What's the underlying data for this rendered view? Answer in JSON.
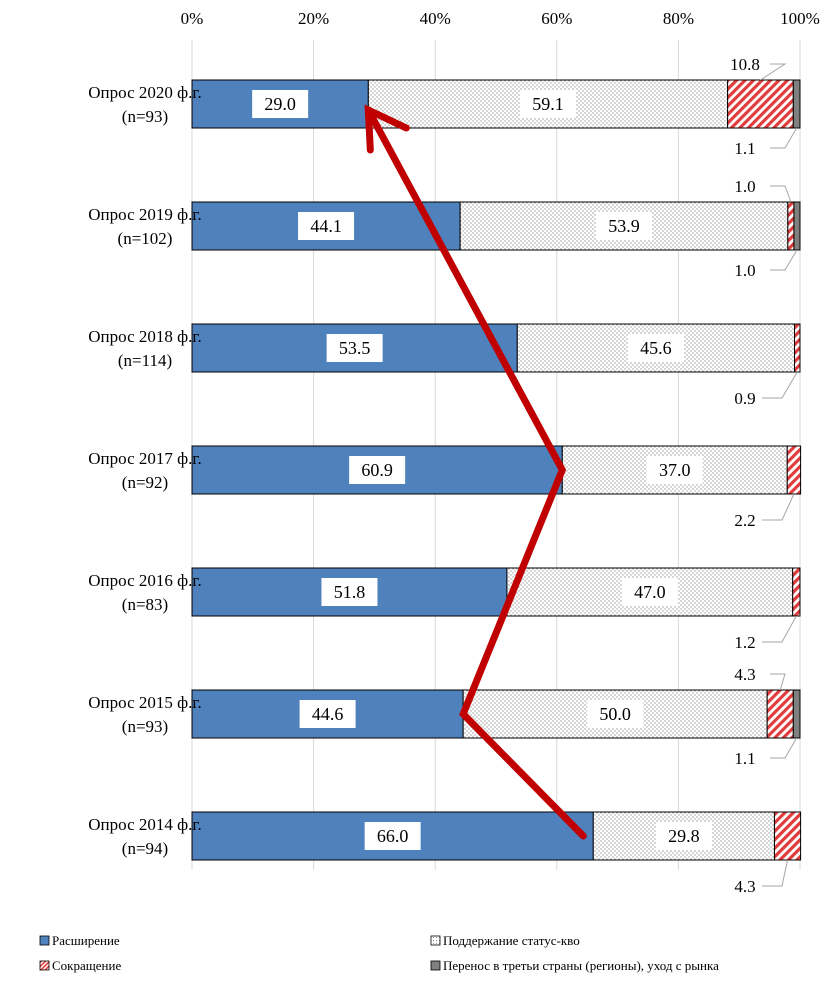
{
  "chart_data": {
    "type": "bar",
    "orientation": "horizontal",
    "stacked": "percent",
    "xlim": [
      0,
      100
    ],
    "x_ticks": [
      "0%",
      "20%",
      "40%",
      "60%",
      "80%",
      "100%"
    ],
    "grid": true,
    "legend_position": "bottom",
    "categories": [
      {
        "line1": "Опрос 2020 ф.г.",
        "line2": "(n=93)"
      },
      {
        "line1": "Опрос 2019 ф.г.",
        "line2": "(n=102)"
      },
      {
        "line1": "Опрос 2018 ф.г.",
        "line2": "(n=114)"
      },
      {
        "line1": "Опрос 2017 ф.г.",
        "line2": "(n=92)"
      },
      {
        "line1": "Опрос 2016 ф.г.",
        "line2": "(n=83)"
      },
      {
        "line1": "Опрос 2015  ф.г.",
        "line2": "(n=93)"
      },
      {
        "line1": "Опрос 2014  ф.г.",
        "line2": "(n=94)"
      }
    ],
    "series": [
      {
        "name": "Расширение",
        "color": "#4f81bd",
        "pattern": "solid",
        "values": [
          29.0,
          44.1,
          53.5,
          60.9,
          51.8,
          44.6,
          66.0
        ],
        "labels": [
          "29.0",
          "44.1",
          "53.5",
          "60.9",
          "51.8",
          "44.6",
          "66.0"
        ]
      },
      {
        "name": "Поддержание статус-кво",
        "color": "#ffffff",
        "pattern": "dots",
        "values": [
          59.1,
          53.9,
          45.6,
          37.0,
          47.0,
          50.0,
          29.8
        ],
        "labels": [
          "59.1",
          "53.9",
          "45.6",
          "37.0",
          "47.0",
          "50.0",
          "29.8"
        ]
      },
      {
        "name": "Сокращение",
        "color": "#e03c3c",
        "pattern": "diagonal-stripes",
        "values": [
          10.8,
          1.0,
          0.9,
          2.2,
          1.2,
          4.3,
          4.3
        ],
        "labels": [
          "10.8",
          "1.0",
          "0.9",
          "2.2",
          "1.2",
          "4.3",
          "4.3"
        ]
      },
      {
        "name": "Перенос в третьи страны (регионы), уход с рынка",
        "color": "#808080",
        "pattern": "solid",
        "values": [
          1.1,
          1.0,
          0.0,
          0.0,
          0.0,
          1.1,
          0.0
        ],
        "labels": [
          "1.1",
          "1.0",
          "",
          "",
          "",
          "1.1",
          ""
        ]
      }
    ],
    "trend_arrow": {
      "color": "#c00000",
      "follows_series": "Расширение",
      "direction": "from 2014 to 2020"
    }
  }
}
